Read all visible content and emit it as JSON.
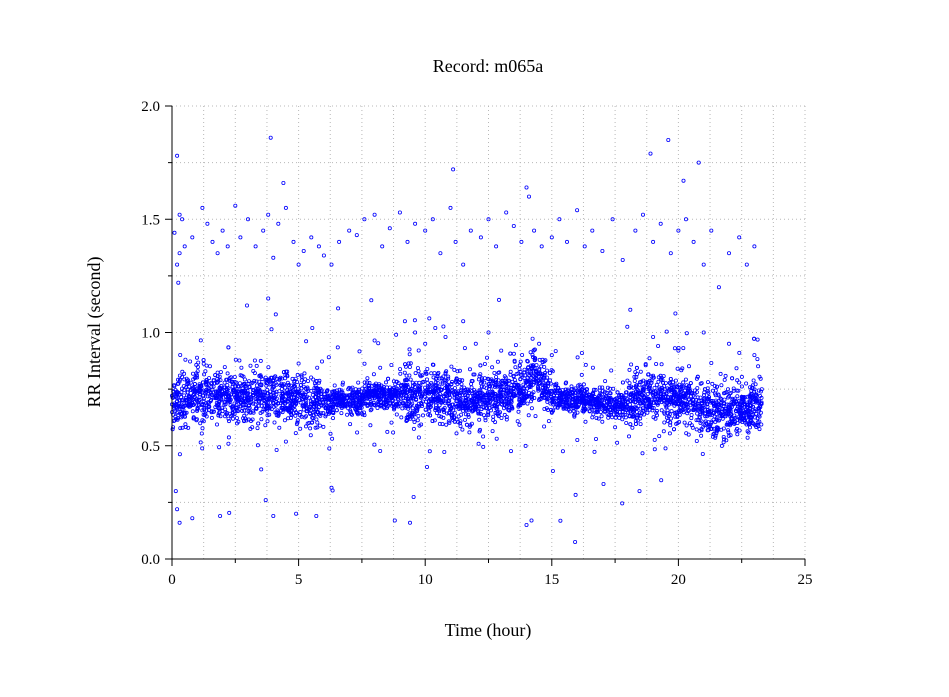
{
  "chart_data": {
    "type": "scatter",
    "title": "Record:  m065a",
    "xlabel": "Time (hour)",
    "ylabel": "RR Interval (second)",
    "xlim": [
      0,
      25
    ],
    "ylim": [
      0.0,
      2.0
    ],
    "xticks": [
      0,
      5,
      10,
      15,
      20,
      25
    ],
    "xtick_labels": [
      "0",
      "5",
      "10",
      "15",
      "20",
      "25"
    ],
    "yticks": [
      0.0,
      0.5,
      1.0,
      1.5,
      2.0
    ],
    "ytick_labels": [
      "0.0",
      "0.5",
      "1.0",
      "1.5",
      "2.0"
    ],
    "grid": true,
    "marker_color": "#0000ff",
    "series": [
      {
        "baseline": {
          "x": [
            0.0,
            0.5,
            1.0,
            2.0,
            3.0,
            4.0,
            5.0,
            6.0,
            7.0,
            8.0,
            9.0,
            10.0,
            11.0,
            12.0,
            13.0,
            14.0,
            14.5,
            15.0,
            16.0,
            17.0,
            18.0,
            18.5,
            19.0,
            20.0,
            20.5,
            21.0,
            21.5,
            22.0,
            23.0,
            23.3
          ],
          "y": [
            0.68,
            0.7,
            0.72,
            0.71,
            0.72,
            0.72,
            0.71,
            0.69,
            0.7,
            0.72,
            0.72,
            0.72,
            0.71,
            0.7,
            0.72,
            0.76,
            0.8,
            0.72,
            0.7,
            0.69,
            0.68,
            0.72,
            0.72,
            0.7,
            0.7,
            0.68,
            0.62,
            0.66,
            0.66,
            0.68
          ]
        },
        "outliers": {
          "x": [
            0.1,
            0.2,
            0.25,
            0.3,
            0.4,
            0.15,
            0.2,
            0.3,
            0.5,
            0.8,
            1.2,
            1.4,
            1.6,
            1.8,
            2.0,
            2.2,
            2.5,
            2.7,
            3.0,
            3.3,
            3.6,
            3.8,
            4.0,
            4.2,
            4.5,
            4.8,
            5.0,
            5.2,
            5.5,
            5.8,
            6.0,
            6.3,
            6.6,
            7.0,
            7.3,
            7.6,
            8.0,
            8.3,
            8.6,
            9.0,
            9.3,
            9.6,
            10.0,
            10.3,
            10.6,
            11.0,
            11.2,
            11.5,
            11.8,
            12.2,
            12.5,
            12.8,
            13.2,
            13.5,
            13.8,
            14.0,
            14.1,
            14.3,
            14.6,
            15.0,
            15.3,
            15.6,
            16.0,
            16.3,
            16.6,
            17.0,
            17.4,
            17.8,
            18.3,
            18.6,
            19.0,
            19.3,
            19.7,
            20.0,
            20.3,
            20.6,
            21.0,
            21.3,
            21.6,
            22.0,
            22.4,
            22.7,
            23.0,
            3.9,
            4.4,
            11.1,
            18.9,
            19.6,
            20.2,
            20.8,
            0.2,
            0.3,
            0.8,
            1.9,
            3.7,
            4.0,
            4.9,
            5.7,
            8.8,
            9.4,
            14.0,
            14.2,
            3.8,
            4.1,
            9.2,
            9.6,
            10.0,
            10.4,
            10.8,
            11.5,
            12.0,
            12.5,
            13.0,
            14.5,
            15.0,
            18.1,
            19.0,
            20.0,
            21.0,
            22.0,
            23.0
          ],
          "y": [
            1.44,
            1.3,
            1.22,
            1.35,
            1.5,
            0.3,
            0.22,
            0.16,
            1.38,
            1.42,
            1.55,
            1.48,
            1.4,
            1.35,
            1.45,
            1.38,
            1.56,
            1.42,
            1.5,
            1.38,
            1.45,
            1.52,
            1.33,
            1.48,
            1.55,
            1.4,
            1.3,
            1.36,
            1.42,
            1.38,
            1.34,
            1.3,
            1.4,
            1.45,
            1.43,
            1.5,
            1.52,
            1.38,
            1.46,
            1.53,
            1.4,
            1.48,
            1.45,
            1.5,
            1.35,
            1.55,
            1.4,
            1.3,
            1.45,
            1.42,
            1.5,
            1.38,
            1.53,
            1.47,
            1.4,
            1.64,
            1.6,
            1.45,
            1.38,
            1.42,
            1.5,
            1.4,
            1.54,
            1.38,
            1.45,
            1.36,
            1.5,
            1.32,
            1.45,
            1.52,
            1.4,
            1.48,
            1.35,
            1.45,
            1.5,
            1.4,
            1.3,
            1.45,
            1.2,
            1.35,
            1.42,
            1.3,
            1.38,
            1.86,
            1.66,
            1.72,
            1.79,
            1.85,
            1.67,
            1.75,
            1.78,
            1.52,
            0.18,
            0.19,
            0.26,
            0.19,
            0.2,
            0.19,
            0.17,
            0.16,
            0.15,
            0.17,
            1.15,
            1.08,
            1.05,
            1.0,
            0.95,
            1.02,
            0.98,
            1.05,
            0.95,
            1.0,
            0.92,
            0.95,
            0.9,
            1.1,
            0.98,
            0.92,
            1.0,
            0.95,
            0.9
          ]
        }
      }
    ]
  }
}
